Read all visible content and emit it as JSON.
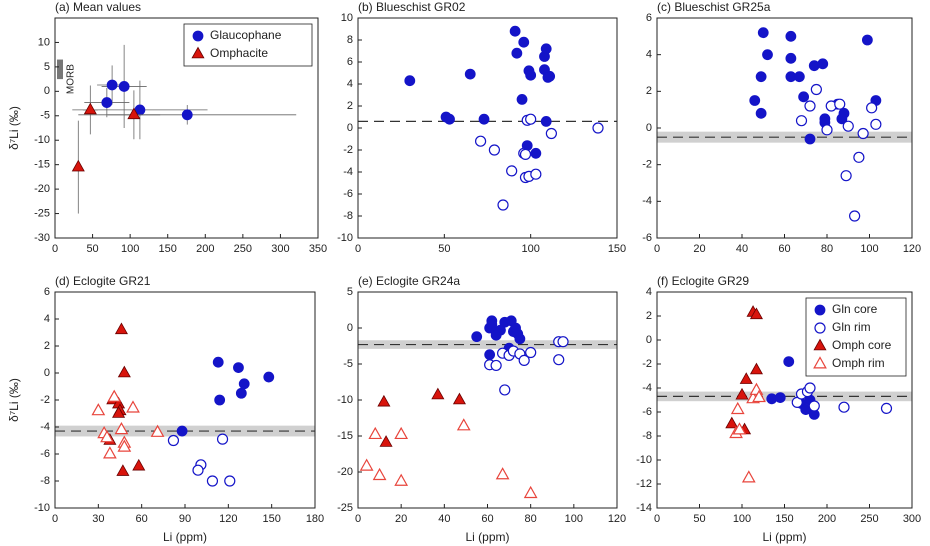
{
  "chart_data": [
    {
      "type": "scatter",
      "title": "(a) Mean values",
      "ylabel": "δ⁷Li (‰)",
      "xlim": [
        0,
        350
      ],
      "xticks": [
        0,
        50,
        100,
        150,
        200,
        250,
        300,
        350
      ],
      "ylim": [
        -30,
        15
      ],
      "yticks": [
        -30,
        -25,
        -20,
        -15,
        -10,
        -5,
        0,
        5,
        10
      ],
      "legend": "upper right",
      "morb": {
        "label": "MORB",
        "y_range": [
          2.5,
          6.5
        ]
      },
      "series": [
        {
          "name": "Glaucophane",
          "color": "#1414c8",
          "marker": "circle",
          "filled": true,
          "x": [
            76,
            92,
            69,
            113,
            176
          ],
          "values": [
            1.3,
            1,
            -2.3,
            -3.8,
            -4.8
          ],
          "xerr": [
            20,
            30,
            30,
            90,
            145
          ],
          "yerr": [
            4,
            8.5,
            3,
            6,
            2
          ]
        },
        {
          "name": "Omphacite",
          "color": "#d8140c",
          "marker": "triangle",
          "filled": true,
          "x": [
            47,
            105,
            31
          ],
          "values": [
            -3.8,
            -4.8,
            -15.5
          ],
          "xerr": [
            10,
            35,
            3
          ],
          "yerr": [
            5,
            5,
            9.5
          ]
        }
      ]
    },
    {
      "type": "scatter",
      "title": "(b) Blueschist GR02",
      "xlim": [
        0,
        150
      ],
      "xticks": [
        0,
        50,
        100,
        150
      ],
      "ylim": [
        -10,
        10
      ],
      "yticks": [
        -10,
        -8,
        -6,
        -4,
        -2,
        0,
        2,
        4,
        6,
        8,
        10
      ],
      "reference": {
        "value": 0.6
      },
      "series": [
        {
          "color": "#1414c8",
          "marker": "circle",
          "filled": true,
          "x": [
            30,
            51,
            53,
            65,
            73,
            91,
            92,
            95,
            96,
            99,
            100,
            108,
            109,
            108,
            110,
            111,
            98,
            103,
            109
          ],
          "values": [
            4.3,
            1.0,
            0.8,
            4.9,
            0.8,
            8.8,
            6.8,
            2.6,
            7.8,
            5.2,
            4.8,
            6.5,
            7.2,
            5.3,
            4.6,
            4.7,
            -1.6,
            -2.3,
            0.6
          ]
        },
        {
          "color": "#1414c8",
          "marker": "circle",
          "filled": false,
          "x": [
            71,
            79,
            89,
            96,
            97,
            99,
            103,
            98,
            100,
            112,
            84,
            139,
            97
          ],
          "values": [
            -1.2,
            -2.0,
            -3.9,
            -2.3,
            -4.5,
            -4.4,
            -4.2,
            0.7,
            0.8,
            -0.5,
            -7.0,
            0.0,
            -2.4
          ]
        }
      ]
    },
    {
      "type": "scatter",
      "title": "(c) Blueschist GR25a",
      "xlim": [
        0,
        120
      ],
      "xticks": [
        0,
        20,
        40,
        60,
        80,
        100,
        120
      ],
      "ylim": [
        -6,
        6
      ],
      "yticks": [
        -6,
        -4,
        -2,
        0,
        2,
        4,
        6
      ],
      "reference": {
        "value": -0.5,
        "band": [
          -0.8,
          -0.2
        ]
      },
      "series": [
        {
          "color": "#1414c8",
          "marker": "circle",
          "filled": true,
          "x": [
            50,
            63,
            52,
            99,
            49,
            63,
            67,
            63,
            74,
            78,
            46,
            49,
            69,
            79,
            79,
            85,
            88,
            103,
            72,
            87
          ],
          "values": [
            5.2,
            5.0,
            4.0,
            4.8,
            2.8,
            2.8,
            2.8,
            3.8,
            3.4,
            3.5,
            1.5,
            0.8,
            1.7,
            0.5,
            0.3,
            1.3,
            0.8,
            1.5,
            -0.6,
            0.5
          ]
        },
        {
          "color": "#1414c8",
          "marker": "circle",
          "filled": false,
          "x": [
            72,
            68,
            75,
            82,
            86,
            80,
            90,
            97,
            101,
            103,
            95,
            89,
            93
          ],
          "values": [
            1.2,
            0.4,
            2.1,
            1.2,
            1.3,
            -0.1,
            0.1,
            -0.3,
            1.1,
            0.2,
            -1.6,
            -2.6,
            -4.8
          ]
        }
      ]
    },
    {
      "type": "scatter",
      "title": "(d) Eclogite GR21",
      "ylabel": "δ⁷Li (‰)",
      "xlabel": "Li (ppm)",
      "xlim": [
        0,
        180
      ],
      "xticks": [
        0,
        30,
        60,
        90,
        120,
        150,
        180
      ],
      "ylim": [
        -10,
        6
      ],
      "yticks": [
        -10,
        -8,
        -6,
        -4,
        -2,
        0,
        2,
        4,
        6
      ],
      "reference": {
        "value": -4.3,
        "band": [
          -4.7,
          -3.9
        ]
      },
      "series": [
        {
          "color": "#1414c8",
          "marker": "circle",
          "filled": true,
          "x": [
            88,
            113,
            114,
            127,
            131,
            129,
            148
          ],
          "values": [
            -4.3,
            0.8,
            -2.0,
            0.4,
            -0.8,
            -1.5,
            -0.3
          ]
        },
        {
          "color": "#1414c8",
          "marker": "circle",
          "filled": false,
          "x": [
            82,
            101,
            99,
            109,
            116,
            121
          ],
          "values": [
            -5.0,
            -6.8,
            -7.2,
            -8.0,
            -4.9,
            -8.0
          ]
        },
        {
          "color": "#d8140c",
          "marker": "triangle",
          "filled": true,
          "x": [
            46,
            48,
            40,
            44,
            45,
            38,
            47,
            58,
            44
          ],
          "values": [
            3.2,
            0.0,
            -2.0,
            -2.3,
            -2.8,
            -5.0,
            -7.3,
            -6.9,
            -3.0
          ]
        },
        {
          "color": "#e8453c",
          "marker": "triangle",
          "filled": false,
          "x": [
            30,
            34,
            38,
            41,
            46,
            48,
            48,
            54,
            71,
            36
          ],
          "values": [
            -2.8,
            -4.5,
            -6.0,
            -1.8,
            -4.2,
            -5.2,
            -5.5,
            -2.6,
            -4.4,
            -4.8
          ]
        }
      ]
    },
    {
      "type": "scatter",
      "title": "(e) Eclogite GR24a",
      "xlabel": "Li (ppm)",
      "xlim": [
        0,
        120
      ],
      "xticks": [
        0,
        20,
        40,
        60,
        80,
        100,
        120
      ],
      "ylim": [
        -25,
        5
      ],
      "yticks": [
        -25,
        -20,
        -15,
        -10,
        -5,
        0,
        5
      ],
      "reference": {
        "value": -2.3,
        "band": [
          -2.9,
          -1.7
        ]
      },
      "series": [
        {
          "color": "#1414c8",
          "marker": "circle",
          "filled": true,
          "x": [
            55,
            61,
            62,
            62,
            64,
            68,
            71,
            72,
            73,
            74,
            75,
            66,
            61,
            70,
            64
          ],
          "values": [
            -1.2,
            0.0,
            1.0,
            0.5,
            -0.5,
            0.8,
            1.0,
            -0.5,
            0.0,
            -0.8,
            -1.5,
            -0.3,
            -3.7,
            -2.8,
            -1.0
          ]
        },
        {
          "color": "#1414c8",
          "marker": "circle",
          "filled": false,
          "x": [
            61,
            64,
            67,
            68,
            70,
            72,
            75,
            77,
            80,
            93,
            95,
            93
          ],
          "values": [
            -5.1,
            -5.2,
            -3.5,
            -8.6,
            -3.8,
            -3.2,
            -3.6,
            -4.5,
            -3.4,
            -1.9,
            -1.9,
            -4.4
          ]
        },
        {
          "color": "#d8140c",
          "marker": "triangle",
          "filled": true,
          "x": [
            12,
            13,
            37,
            47
          ],
          "values": [
            -10.3,
            -15.9,
            -9.3,
            -10.0
          ]
        },
        {
          "color": "#e8453c",
          "marker": "triangle",
          "filled": false,
          "x": [
            4,
            8,
            10,
            20,
            20,
            49,
            67,
            80
          ],
          "values": [
            -19.2,
            -14.8,
            -20.5,
            -14.8,
            -21.3,
            -13.6,
            -20.4,
            -23.0
          ]
        }
      ]
    },
    {
      "type": "scatter",
      "title": "(f) Eclogite GR29",
      "xlabel": "Li (ppm)",
      "xlim": [
        0,
        300
      ],
      "xticks": [
        0,
        50,
        100,
        150,
        200,
        250,
        300
      ],
      "ylim": [
        -14,
        4
      ],
      "yticks": [
        -14,
        -12,
        -10,
        -8,
        -6,
        -4,
        -2,
        0,
        2,
        4
      ],
      "reference": {
        "value": -4.7,
        "band": [
          -5.1,
          -4.3
        ]
      },
      "legend": "upper right",
      "series": [
        {
          "name": "Gln core",
          "color": "#1414c8",
          "marker": "circle",
          "filled": true,
          "x": [
            135,
            155,
            145,
            170,
            175,
            185,
            180
          ],
          "values": [
            -4.9,
            -1.8,
            -4.8,
            -5.3,
            -5.8,
            -6.2,
            -5.0
          ]
        },
        {
          "name": "Gln rim",
          "color": "#1414c8",
          "marker": "circle",
          "filled": false,
          "x": [
            165,
            170,
            177,
            180,
            185,
            220,
            270
          ],
          "values": [
            -5.2,
            -4.5,
            -4.3,
            -4.0,
            -5.5,
            -5.6,
            -5.7
          ]
        },
        {
          "name": "Omph core",
          "color": "#d8140c",
          "marker": "triangle",
          "filled": true,
          "x": [
            88,
            100,
            105,
            103,
            113,
            117,
            117
          ],
          "values": [
            -7.0,
            -4.6,
            -3.3,
            -7.5,
            2.3,
            2.1,
            -2.5
          ]
        },
        {
          "name": "Omph rim",
          "color": "#e8453c",
          "marker": "triangle",
          "filled": false,
          "x": [
            93,
            95,
            97,
            108,
            113,
            117,
            120
          ],
          "values": [
            -7.8,
            -5.8,
            -7.5,
            -11.5,
            -4.9,
            -4.2,
            -4.8
          ]
        }
      ]
    }
  ]
}
